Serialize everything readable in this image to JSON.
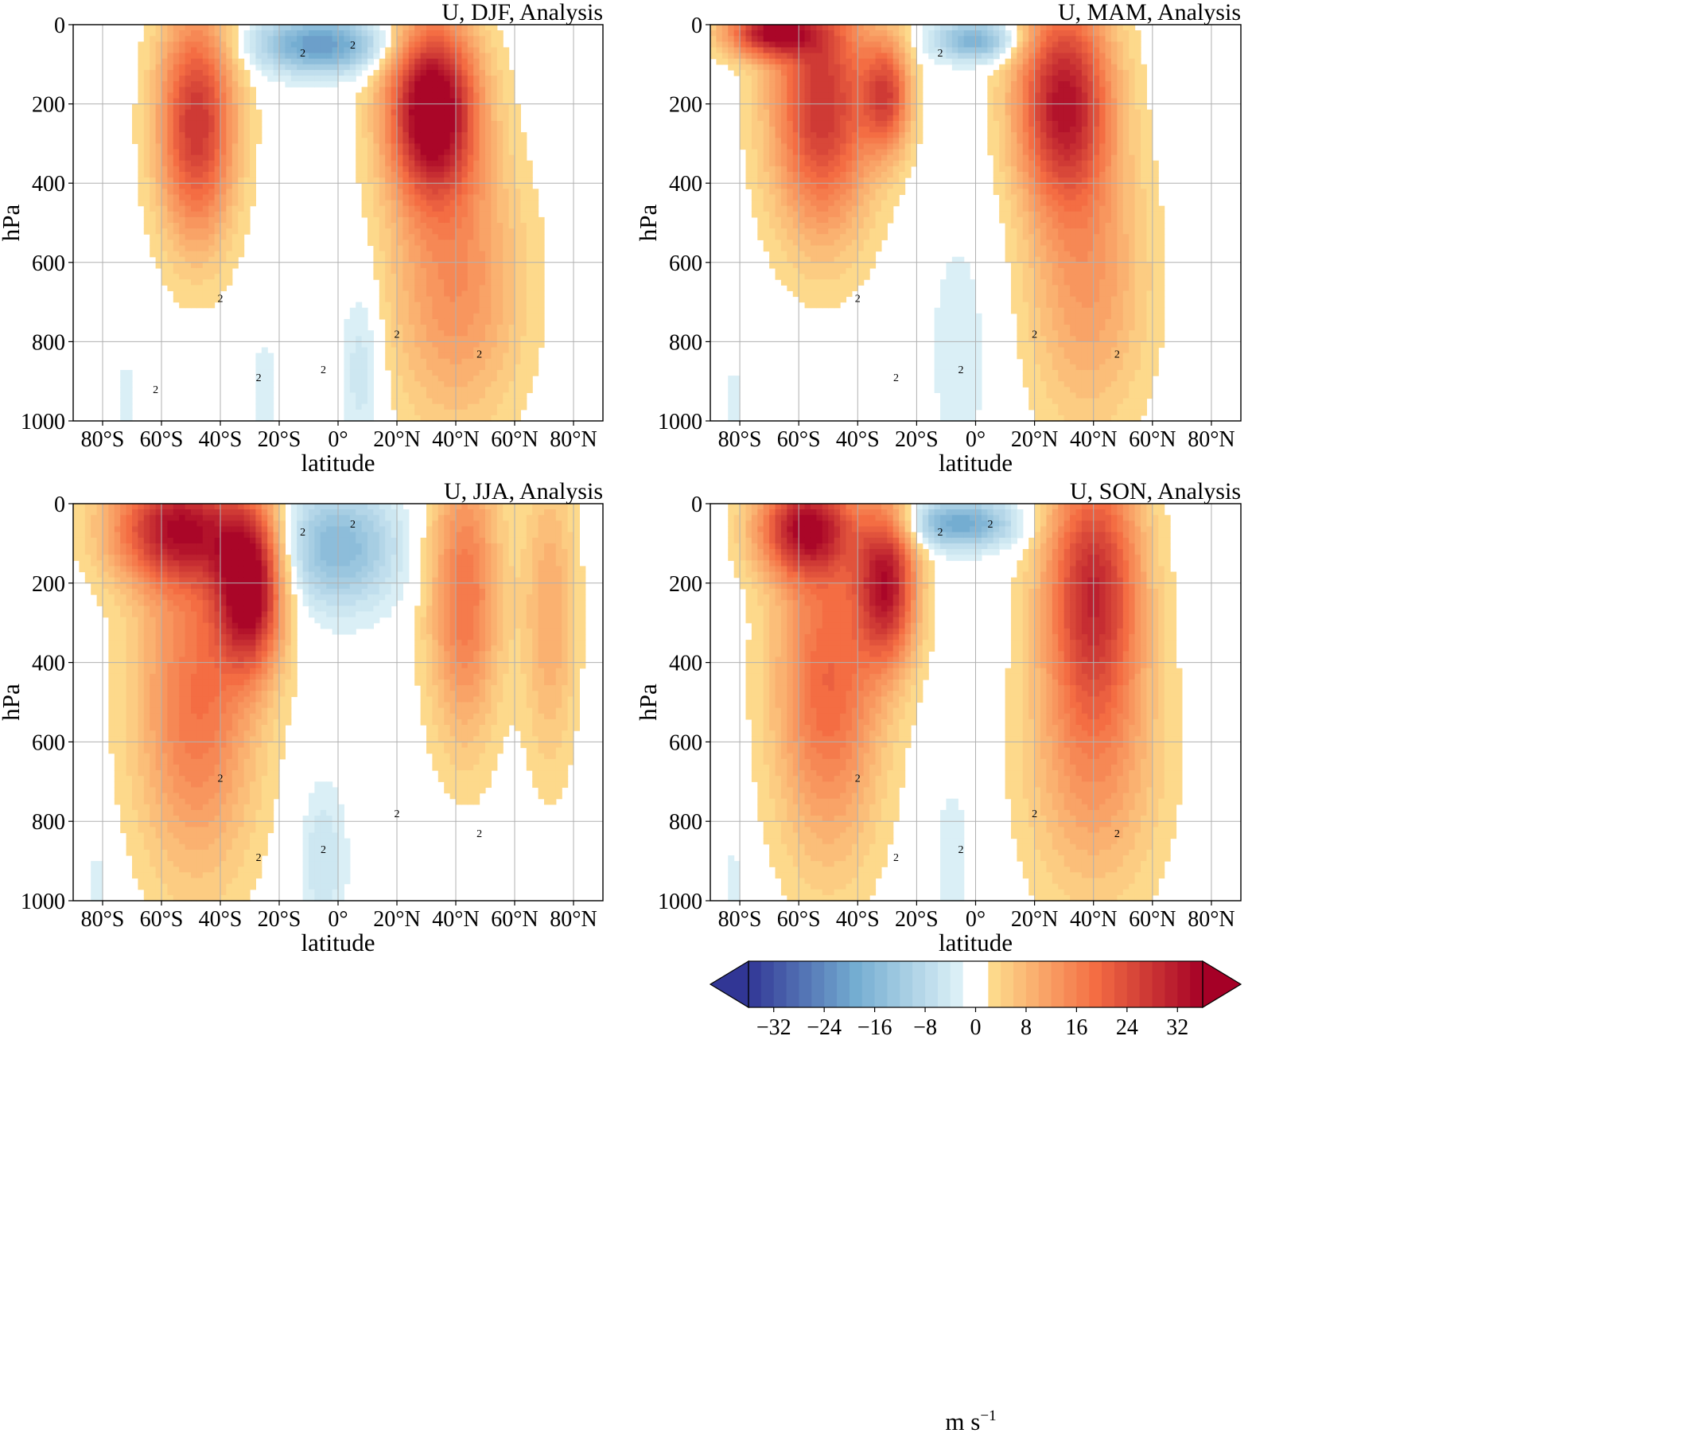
{
  "figure": {
    "colorbar": {
      "label": "m s",
      "label_superscript": "−1",
      "ticks": [
        -32,
        -24,
        -16,
        -8,
        0,
        8,
        16,
        24,
        32
      ],
      "tick_labels": [
        "−32",
        "−24",
        "−16",
        "−8",
        "0",
        "8",
        "16",
        "24",
        "32"
      ],
      "range": [
        -36,
        36
      ],
      "level_step": 2,
      "extend": "both",
      "colormap": "RdYlBu_r",
      "zero_band": [
        -2,
        2
      ],
      "colors": {
        "neg_max": "#313695",
        "neg_mid": "#74add1",
        "neg_min": "#e0f3f8",
        "zero": "#ffffff",
        "pos_min": "#fee090",
        "pos_mid": "#f46d43",
        "pos_max": "#a50026"
      }
    }
  },
  "chart_data": [
    {
      "type": "heatmap",
      "title": "U, DJF, Analysis",
      "xlabel": "latitude",
      "ylabel": "hPa",
      "xlim": [
        -90,
        90
      ],
      "ylim": [
        1000,
        0
      ],
      "x_ticks": [
        -80,
        -60,
        -40,
        -20,
        0,
        20,
        40,
        60,
        80
      ],
      "x_tick_labels": [
        "80°S",
        "60°S",
        "40°S",
        "20°S",
        "0°",
        "20°N",
        "40°N",
        "60°N",
        "80°N"
      ],
      "y_ticks": [
        0,
        200,
        400,
        600,
        800,
        1000
      ],
      "y_tick_labels": [
        "0",
        "200",
        "400",
        "600",
        "800",
        "1000"
      ],
      "grid": true,
      "contour_labels": [
        "2",
        "2",
        "2",
        "2",
        "2",
        "2",
        "2",
        "2"
      ],
      "jets": [
        {
          "lat": -48,
          "p": 250,
          "u": 28,
          "wlat": 13,
          "wp": 290
        },
        {
          "lat": 32,
          "p": 210,
          "u": 40,
          "wlat": 15,
          "wp": 220
        },
        {
          "lat": 40,
          "p": 650,
          "u": 14,
          "wlat": 22,
          "wp": 350
        },
        {
          "lat": -6,
          "p": 50,
          "u": -22,
          "wlat": 22,
          "wp": 70
        },
        {
          "lat": 8,
          "p": 860,
          "u": -6,
          "wlat": 7,
          "wp": 220
        },
        {
          "lat": -25,
          "p": 920,
          "u": -3,
          "wlat": 5,
          "wp": 180
        },
        {
          "lat": -72,
          "p": 950,
          "u": -3,
          "wlat": 4,
          "wp": 130
        }
      ]
    },
    {
      "type": "heatmap",
      "title": "U, MAM, Analysis",
      "xlabel": "latitude",
      "ylabel": "hPa",
      "xlim": [
        -90,
        90
      ],
      "ylim": [
        1000,
        0
      ],
      "x_ticks": [
        -80,
        -60,
        -40,
        -20,
        0,
        20,
        40,
        60,
        80
      ],
      "x_tick_labels": [
        "80°S",
        "60°S",
        "40°S",
        "20°S",
        "0°",
        "20°N",
        "40°N",
        "60°N",
        "80°N"
      ],
      "y_ticks": [
        0,
        200,
        400,
        600,
        800,
        1000
      ],
      "y_tick_labels": [
        "0",
        "200",
        "400",
        "600",
        "800",
        "1000"
      ],
      "grid": true,
      "contour_labels": [
        "2",
        "2",
        "2",
        "2",
        "2",
        "2"
      ],
      "jets": [
        {
          "lat": -52,
          "p": 200,
          "u": 28,
          "wlat": 17,
          "wp": 320
        },
        {
          "lat": -30,
          "p": 180,
          "u": 22,
          "wlat": 8,
          "wp": 140
        },
        {
          "lat": 30,
          "p": 190,
          "u": 32,
          "wlat": 16,
          "wp": 260
        },
        {
          "lat": 38,
          "p": 650,
          "u": 12,
          "wlat": 20,
          "wp": 350
        },
        {
          "lat": -70,
          "p": 20,
          "u": 30,
          "wlat": 15,
          "wp": 60
        },
        {
          "lat": 0,
          "p": 40,
          "u": -18,
          "wlat": 14,
          "wp": 50
        },
        {
          "lat": -5,
          "p": 820,
          "u": -3,
          "wlat": 14,
          "wp": 400
        },
        {
          "lat": -82,
          "p": 950,
          "u": -3,
          "wlat": 4,
          "wp": 120
        }
      ]
    },
    {
      "type": "heatmap",
      "title": "U, JJA, Analysis",
      "xlabel": "latitude",
      "ylabel": "hPa",
      "xlim": [
        -90,
        90
      ],
      "ylim": [
        1000,
        0
      ],
      "x_ticks": [
        -80,
        -60,
        -40,
        -20,
        0,
        20,
        40,
        60,
        80
      ],
      "x_tick_labels": [
        "80°S",
        "60°S",
        "40°S",
        "20°S",
        "0°",
        "20°N",
        "40°N",
        "60°N",
        "80°N"
      ],
      "y_ticks": [
        0,
        200,
        400,
        600,
        800,
        1000
      ],
      "y_tick_labels": [
        "0",
        "200",
        "400",
        "600",
        "800",
        "1000"
      ],
      "grid": true,
      "contour_labels": [
        "2",
        "2",
        "2",
        "2",
        "2",
        "2",
        "2"
      ],
      "jets": [
        {
          "lat": -55,
          "p": 60,
          "u": 30,
          "wlat": 22,
          "wp": 140
        },
        {
          "lat": -30,
          "p": 210,
          "u": 36,
          "wlat": 11,
          "wp": 200
        },
        {
          "lat": -48,
          "p": 500,
          "u": 18,
          "wlat": 20,
          "wp": 420
        },
        {
          "lat": 43,
          "p": 230,
          "u": 18,
          "wlat": 12,
          "wp": 360
        },
        {
          "lat": 72,
          "p": 280,
          "u": 10,
          "wlat": 9,
          "wp": 380
        },
        {
          "lat": 0,
          "p": 110,
          "u": -16,
          "wlat": 20,
          "wp": 150
        },
        {
          "lat": -5,
          "p": 900,
          "u": -6,
          "wlat": 8,
          "wp": 200
        },
        {
          "lat": -82,
          "p": 950,
          "u": -3,
          "wlat": 4,
          "wp": 120
        }
      ]
    },
    {
      "type": "heatmap",
      "title": "U, SON, Analysis",
      "xlabel": "latitude",
      "ylabel": "hPa",
      "xlim": [
        -90,
        90
      ],
      "ylim": [
        1000,
        0
      ],
      "x_ticks": [
        -80,
        -60,
        -40,
        -20,
        0,
        20,
        40,
        60,
        80
      ],
      "x_tick_labels": [
        "80°S",
        "60°S",
        "40°S",
        "20°S",
        "0°",
        "20°N",
        "40°N",
        "60°N",
        "80°N"
      ],
      "y_ticks": [
        0,
        200,
        400,
        600,
        800,
        1000
      ],
      "y_tick_labels": [
        "0",
        "200",
        "400",
        "600",
        "800",
        "1000"
      ],
      "grid": true,
      "contour_labels": [
        "2",
        "2",
        "2",
        "2",
        "2",
        "2",
        "2"
      ],
      "jets": [
        {
          "lat": -58,
          "p": 60,
          "u": 30,
          "wlat": 16,
          "wp": 120
        },
        {
          "lat": -30,
          "p": 200,
          "u": 30,
          "wlat": 10,
          "wp": 200
        },
        {
          "lat": -50,
          "p": 450,
          "u": 20,
          "wlat": 18,
          "wp": 420
        },
        {
          "lat": 40,
          "p": 200,
          "u": 28,
          "wlat": 16,
          "wp": 320
        },
        {
          "lat": 40,
          "p": 650,
          "u": 12,
          "wlat": 22,
          "wp": 350
        },
        {
          "lat": -5,
          "p": 50,
          "u": -20,
          "wlat": 18,
          "wp": 60
        },
        {
          "lat": -8,
          "p": 880,
          "u": -3,
          "wlat": 8,
          "wp": 250
        },
        {
          "lat": -82,
          "p": 950,
          "u": -3,
          "wlat": 4,
          "wp": 120
        }
      ]
    }
  ]
}
